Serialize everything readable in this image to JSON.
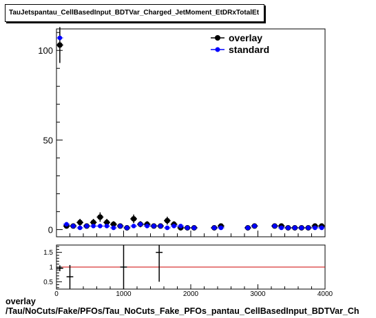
{
  "title": "TauJetspantau_CellBasedInput_BDTVar_Charged_JetMoment_EtDRxTotalEt",
  "footer": {
    "line1": "overlay",
    "line2": "/Tau/NoCuts/Fake/PFOs/Tau_NoCuts_Fake_PFOs_pantau_CellBasedInput_BDTVar_Ch"
  },
  "colors": {
    "overlay": "#000000",
    "standard": "#0000ff",
    "ratio_line": "#cc0000"
  },
  "chart_data": [
    {
      "type": "scatter",
      "panel": "main",
      "xlim": [
        0,
        4000
      ],
      "ylim": [
        -4,
        112
      ],
      "y_ticks_labeled": [
        0,
        50,
        100
      ],
      "legend": {
        "position": "top-right",
        "entries": [
          "overlay",
          "standard"
        ]
      },
      "bin_half_width": 50,
      "series": [
        {
          "name": "overlay",
          "x": [
            50,
            150,
            250,
            350,
            450,
            550,
            650,
            750,
            850,
            950,
            1050,
            1150,
            1250,
            1350,
            1450,
            1550,
            1650,
            1750,
            1850,
            1950,
            2050,
            2350,
            2450,
            2850,
            2950,
            3250,
            3350,
            3450,
            3550,
            3650,
            3750,
            3850,
            3950
          ],
          "y": [
            103,
            2,
            2,
            4,
            2,
            4,
            7,
            4,
            3,
            2,
            1,
            6,
            3,
            3,
            2,
            2,
            5,
            3,
            1,
            1,
            1,
            1,
            2,
            1,
            2,
            2,
            2,
            1,
            1,
            1,
            1,
            2,
            2
          ],
          "yerr": [
            10,
            1.4,
            1.4,
            2,
            1.4,
            2,
            2.6,
            2,
            1.7,
            1.4,
            1,
            2.4,
            1.7,
            1.7,
            1.4,
            1.4,
            2.2,
            1.7,
            1,
            1,
            1,
            1,
            1.4,
            1,
            1.4,
            1.4,
            1.4,
            1,
            1,
            1,
            1,
            1.4,
            1.4
          ]
        },
        {
          "name": "standard",
          "x": [
            50,
            150,
            250,
            350,
            450,
            550,
            650,
            750,
            850,
            950,
            1050,
            1150,
            1250,
            1350,
            1450,
            1550,
            1650,
            1750,
            1850,
            1950,
            2050,
            2350,
            2450,
            2850,
            2950,
            3250,
            3350,
            3450,
            3550,
            3650,
            3750,
            3850,
            3950
          ],
          "y": [
            107,
            3,
            2,
            1,
            2,
            2,
            2,
            2,
            1,
            2,
            1,
            2,
            3,
            2,
            2,
            2,
            1,
            2,
            2,
            1,
            1,
            1,
            1,
            1,
            2,
            2,
            1,
            1,
            1,
            1,
            1,
            1,
            1
          ]
        }
      ]
    },
    {
      "type": "scatter",
      "panel": "ratio",
      "xlim": [
        0,
        4000
      ],
      "ylim": [
        0.25,
        1.75
      ],
      "x_ticks_labeled": [
        0,
        1000,
        2000,
        3000,
        4000
      ],
      "y_ticks_labeled": [
        0.5,
        1,
        1.5
      ],
      "reference_line": 1,
      "bin_half_width": 50,
      "series": [
        {
          "name": "ratio",
          "x": [
            50,
            200,
            1000,
            1530
          ],
          "y": [
            0.96,
            0.67,
            1.0,
            1.5
          ],
          "yerr": [
            0.1,
            0.4,
            1.0,
            1.0
          ]
        }
      ]
    }
  ]
}
